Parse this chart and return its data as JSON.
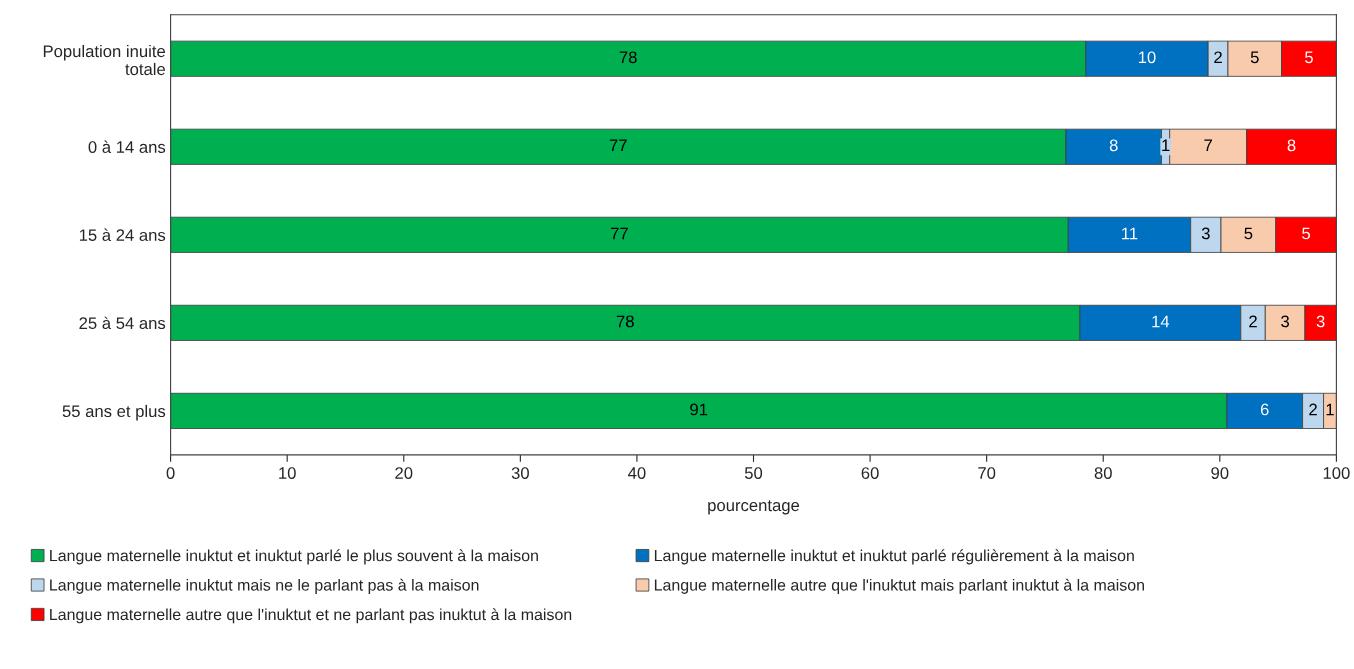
{
  "chart_data": {
    "type": "bar",
    "orientation": "horizontal",
    "stacked": true,
    "categories": [
      "Population inuite\ntotale",
      "0 à 14 ans",
      "15 à 24 ans",
      "25 à 54 ans",
      "55 ans et plus"
    ],
    "series": [
      {
        "name": "Langue maternelle inuktut et inuktut parlé le plus souvent à la maison",
        "color": "#00b050",
        "values": [
          78.5,
          76.8,
          77,
          78,
          90.6
        ],
        "value_labels": [
          "78",
          "77",
          "77",
          "78",
          "91"
        ]
      },
      {
        "name": "Langue maternelle inuktut et inuktut parlé régulièrement à la maison",
        "color": "#0070c0",
        "values": [
          10.5,
          8.2,
          10.5,
          13.8,
          6.5
        ],
        "value_labels": [
          "10",
          "8",
          "11",
          "14",
          "6"
        ]
      },
      {
        "name": "Langue maternelle inuktut mais ne le parlant pas à la maison",
        "color": "#bdd7ee",
        "values": [
          1.7,
          0.7,
          2.6,
          2.1,
          1.8
        ],
        "value_labels": [
          "2",
          "1",
          "3",
          "2",
          "2"
        ]
      },
      {
        "name": "Langue maternelle autre que l'inuktut mais parlant inuktut à la maison",
        "color": "#f8cbad",
        "values": [
          4.6,
          6.6,
          4.7,
          3.4,
          1.1
        ],
        "value_labels": [
          "5",
          "7",
          "5",
          "3",
          "1"
        ]
      },
      {
        "name": "Langue maternelle autre que l'inuktut et ne parlant pas inuktut à la maison",
        "color": "#ff0000",
        "values": [
          4.7,
          7.7,
          5.2,
          2.7,
          null
        ],
        "value_labels": [
          "5",
          "8",
          "5",
          "3",
          null
        ]
      }
    ],
    "xlabel": "pourcentage",
    "xlim": [
      0,
      100
    ],
    "xticks": [
      0,
      10,
      20,
      30,
      40,
      50,
      60,
      70,
      80,
      90,
      100
    ],
    "grid": false,
    "legend": "bottom"
  }
}
